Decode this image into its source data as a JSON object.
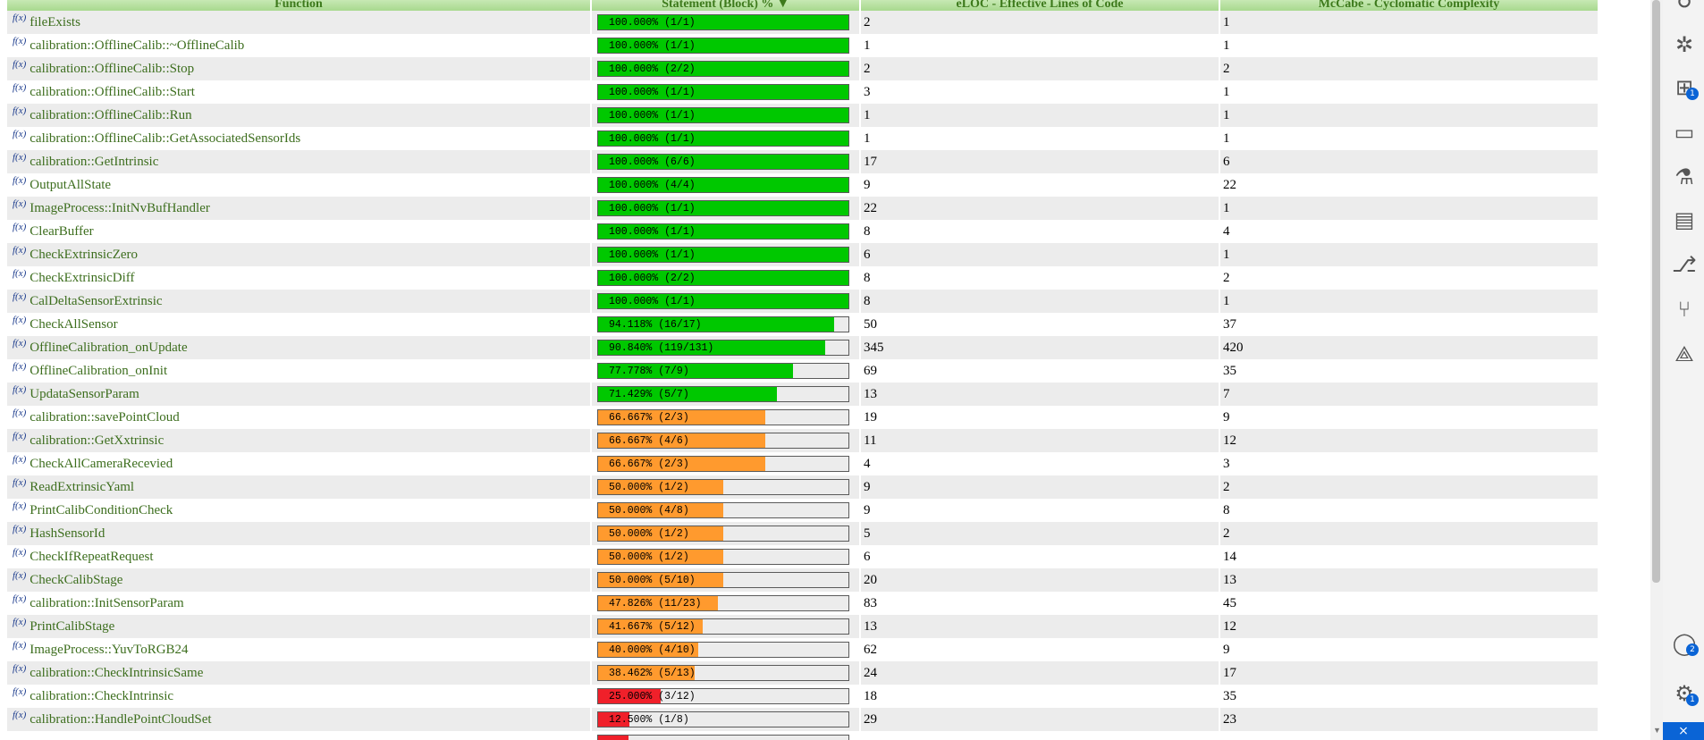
{
  "table": {
    "headers": {
      "function": "Function",
      "statement": "Statement (Block) % ▼",
      "eloc": "eLOC - Effective Lines of Code",
      "mccabe": "McCabe - Cyclomatic Complexity"
    },
    "function_marker": "f(x)",
    "rows": [
      {
        "name": "fileExists",
        "coverage_text": "100.000% (1/1)",
        "coverage": 1.0,
        "eloc": "2",
        "mccabe": "1"
      },
      {
        "name": "calibration::OfflineCalib::~OfflineCalib",
        "coverage_text": "100.000% (1/1)",
        "coverage": 1.0,
        "eloc": "1",
        "mccabe": "1"
      },
      {
        "name": "calibration::OfflineCalib::Stop",
        "coverage_text": "100.000% (2/2)",
        "coverage": 1.0,
        "eloc": "2",
        "mccabe": "2"
      },
      {
        "name": "calibration::OfflineCalib::Start",
        "coverage_text": "100.000% (1/1)",
        "coverage": 1.0,
        "eloc": "3",
        "mccabe": "1"
      },
      {
        "name": "calibration::OfflineCalib::Run",
        "coverage_text": "100.000% (1/1)",
        "coverage": 1.0,
        "eloc": "1",
        "mccabe": "1"
      },
      {
        "name": "calibration::OfflineCalib::GetAssociatedSensorIds",
        "coverage_text": "100.000% (1/1)",
        "coverage": 1.0,
        "eloc": "1",
        "mccabe": "1"
      },
      {
        "name": "calibration::GetIntrinsic",
        "coverage_text": "100.000% (6/6)",
        "coverage": 1.0,
        "eloc": "17",
        "mccabe": "6"
      },
      {
        "name": "OutputAllState",
        "coverage_text": "100.000% (4/4)",
        "coverage": 1.0,
        "eloc": "9",
        "mccabe": "22"
      },
      {
        "name": "ImageProcess::InitNvBufHandler",
        "coverage_text": "100.000% (1/1)",
        "coverage": 1.0,
        "eloc": "22",
        "mccabe": "1"
      },
      {
        "name": "ClearBuffer",
        "coverage_text": "100.000% (1/1)",
        "coverage": 1.0,
        "eloc": "8",
        "mccabe": "4"
      },
      {
        "name": "CheckExtrinsicZero",
        "coverage_text": "100.000% (1/1)",
        "coverage": 1.0,
        "eloc": "6",
        "mccabe": "1"
      },
      {
        "name": "CheckExtrinsicDiff",
        "coverage_text": "100.000% (2/2)",
        "coverage": 1.0,
        "eloc": "8",
        "mccabe": "2"
      },
      {
        "name": "CalDeltaSensorExtrinsic",
        "coverage_text": "100.000% (1/1)",
        "coverage": 1.0,
        "eloc": "8",
        "mccabe": "1"
      },
      {
        "name": "CheckAllSensor",
        "coverage_text": "94.118% (16/17)",
        "coverage": 0.94118,
        "eloc": "50",
        "mccabe": "37"
      },
      {
        "name": "OfflineCalibration_onUpdate",
        "coverage_text": "90.840% (119/131)",
        "coverage": 0.9084,
        "eloc": "345",
        "mccabe": "420"
      },
      {
        "name": "OfflineCalibration_onInit",
        "coverage_text": "77.778% (7/9)",
        "coverage": 0.77778,
        "eloc": "69",
        "mccabe": "35"
      },
      {
        "name": "UpdataSensorParam",
        "coverage_text": "71.429% (5/7)",
        "coverage": 0.71429,
        "eloc": "13",
        "mccabe": "7"
      },
      {
        "name": "calibration::savePointCloud",
        "coverage_text": "66.667% (2/3)",
        "coverage": 0.66667,
        "eloc": "19",
        "mccabe": "9"
      },
      {
        "name": "calibration::GetXxtrinsic",
        "coverage_text": "66.667% (4/6)",
        "coverage": 0.66667,
        "eloc": "11",
        "mccabe": "12"
      },
      {
        "name": "CheckAllCameraRecevied",
        "coverage_text": "66.667% (2/3)",
        "coverage": 0.66667,
        "eloc": "4",
        "mccabe": "3"
      },
      {
        "name": "ReadExtrinsicYaml",
        "coverage_text": "50.000% (1/2)",
        "coverage": 0.5,
        "eloc": "9",
        "mccabe": "2"
      },
      {
        "name": "PrintCalibConditionCheck",
        "coverage_text": "50.000% (4/8)",
        "coverage": 0.5,
        "eloc": "9",
        "mccabe": "8"
      },
      {
        "name": "HashSensorId",
        "coverage_text": "50.000% (1/2)",
        "coverage": 0.5,
        "eloc": "5",
        "mccabe": "2"
      },
      {
        "name": "CheckIfRepeatRequest",
        "coverage_text": "50.000% (1/2)",
        "coverage": 0.5,
        "eloc": "6",
        "mccabe": "14"
      },
      {
        "name": "CheckCalibStage",
        "coverage_text": "50.000% (5/10)",
        "coverage": 0.5,
        "eloc": "20",
        "mccabe": "13"
      },
      {
        "name": "calibration::InitSensorParam",
        "coverage_text": "47.826% (11/23)",
        "coverage": 0.47826,
        "eloc": "83",
        "mccabe": "45"
      },
      {
        "name": "PrintCalibStage",
        "coverage_text": "41.667% (5/12)",
        "coverage": 0.41667,
        "eloc": "13",
        "mccabe": "12"
      },
      {
        "name": "ImageProcess::YuvToRGB24",
        "coverage_text": "40.000% (4/10)",
        "coverage": 0.4,
        "eloc": "62",
        "mccabe": "9"
      },
      {
        "name": "calibration::CheckIntrinsicSame",
        "coverage_text": "38.462% (5/13)",
        "coverage": 0.38462,
        "eloc": "24",
        "mccabe": "17"
      },
      {
        "name": "calibration::CheckIntrinsic",
        "coverage_text": "25.000% (3/12)",
        "coverage": 0.25,
        "eloc": "18",
        "mccabe": "35"
      },
      {
        "name": "calibration::HandlePointCloudSet",
        "coverage_text": "12.500% (1/8)",
        "coverage": 0.125,
        "eloc": "29",
        "mccabe": "23"
      },
      {
        "name": "",
        "coverage_text": "",
        "coverage": 0.12,
        "eloc": "",
        "mccabe": ""
      }
    ]
  },
  "colors": {
    "high": "#00c800",
    "medium": "#ff9a2e",
    "low": "#f0202a",
    "empty": "#ececec",
    "header_text": "#3d7a1c",
    "function_text": "#3d6e1e"
  },
  "activity_bar": {
    "icons": [
      "accounts-icon",
      "debug-icon",
      "extensions-icon",
      "remote-explorer-icon",
      "testing-icon",
      "clipboard-icon",
      "git-graph-icon",
      "source-control-icon",
      "deploy-icon",
      "account-icon",
      "settings-gear-icon"
    ],
    "extensions_badge": "1",
    "account_badge": "2",
    "settings_badge": "1",
    "remote_glyph": "⨯"
  }
}
